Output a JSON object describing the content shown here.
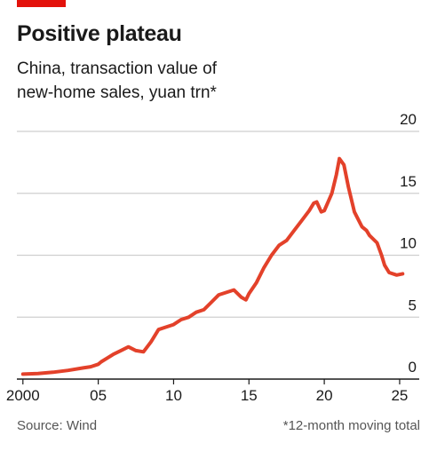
{
  "header": {
    "title": "Positive plateau",
    "subtitle_line1": "China, transaction value of",
    "subtitle_line2": "new-home sales, yuan trn*"
  },
  "footer": {
    "source": "Source: Wind",
    "note": "*12-month moving total"
  },
  "colors": {
    "accent": "#e3120b",
    "line": "#e3412a",
    "grid": "#cfcfcf",
    "axis": "#1a1a1a"
  },
  "chart_data": {
    "type": "line",
    "title": "Positive plateau",
    "subtitle": "China, transaction value of new-home sales, yuan trn*",
    "xlabel": "",
    "ylabel": "",
    "xlim": [
      1999.6,
      2026.3
    ],
    "ylim": [
      0,
      20
    ],
    "x_ticks": [
      2000,
      2005,
      2010,
      2015,
      2020,
      2025
    ],
    "x_tick_labels": [
      "2000",
      "05",
      "10",
      "15",
      "20",
      "25"
    ],
    "y_ticks": [
      0,
      5,
      10,
      15,
      20
    ],
    "y_tick_labels": [
      "0",
      "5",
      "10",
      "15",
      "20"
    ],
    "grid": "horizontal",
    "series": [
      {
        "x": [
          2000.0,
          2001.0,
          2002.0,
          2003.0,
          2004.0,
          2004.5,
          2005.0,
          2005.2,
          2005.6,
          2006.0,
          2006.5,
          2007.0,
          2007.5,
          2008.0,
          2008.5,
          2009.0,
          2009.5,
          2010.0,
          2010.5,
          2011.0,
          2011.5,
          2012.0,
          2012.5,
          2013.0,
          2013.5,
          2014.0,
          2014.5,
          2014.8,
          2015.0,
          2015.5,
          2016.0,
          2016.5,
          2017.0,
          2017.5,
          2018.0,
          2018.5,
          2019.0,
          2019.3,
          2019.5,
          2019.8,
          2020.0,
          2020.5,
          2020.8,
          2021.0,
          2021.3,
          2021.6,
          2022.0,
          2022.5,
          2022.8,
          2023.0,
          2023.5,
          2023.8,
          2024.0,
          2024.3,
          2024.8,
          2025.2
        ],
        "values": [
          0.4,
          0.45,
          0.55,
          0.7,
          0.9,
          1.0,
          1.2,
          1.4,
          1.7,
          2.0,
          2.3,
          2.6,
          2.3,
          2.2,
          3.0,
          4.0,
          4.2,
          4.4,
          4.8,
          5.0,
          5.4,
          5.6,
          6.2,
          6.8,
          7.0,
          7.2,
          6.6,
          6.4,
          6.9,
          7.8,
          9.0,
          10.0,
          10.8,
          11.2,
          12.0,
          12.8,
          13.6,
          14.2,
          14.3,
          13.5,
          13.6,
          15.0,
          16.5,
          17.8,
          17.3,
          15.5,
          13.5,
          12.3,
          12.0,
          11.6,
          11.0,
          10.0,
          9.2,
          8.6,
          8.4,
          8.5
        ]
      }
    ]
  }
}
